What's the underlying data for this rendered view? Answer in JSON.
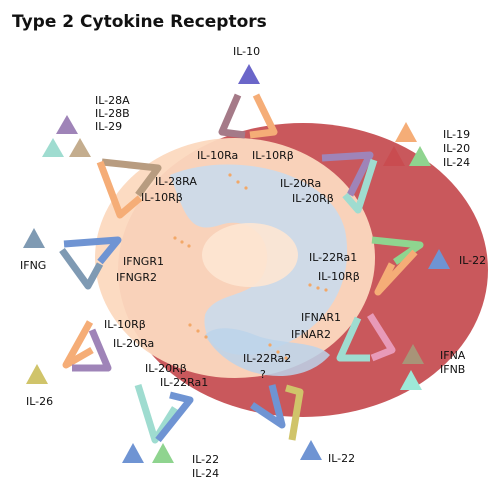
{
  "title": "Type 2 Cytokine Receptors",
  "colors": {
    "outer_ring": "#c9585c",
    "cell_body": "#fcd9bf",
    "nucleus": "#c8dcef",
    "triangle_purple": "#9f84b8",
    "triangle_blue": "#6f94d3",
    "triangle_orange": "#f5ad77",
    "triangle_teal": "#9fdcd0",
    "triangle_tan": "#b89c80",
    "triangle_red": "#c94c50",
    "triangle_green": "#8fd48f",
    "triangle_grey_blue": "#7f9ab3",
    "triangle_olive": "#d0c46a",
    "triangle_mint": "#9ee8d8"
  },
  "ligands": {
    "il10": "IL-10",
    "il28a": "IL-28A",
    "il28b": "IL-28B",
    "il29": "IL-29",
    "il19": "IL-19",
    "il20": "IL-20",
    "il24_top": "IL-24",
    "ifng": "IFNG",
    "il22_right": "IL-22",
    "ifna": "IFNA",
    "ifnb": "IFNB",
    "il26": "IL-26",
    "il22_bottom_left": "IL-22",
    "il24_bottom": "IL-24",
    "il22_bottom_right": "IL-22"
  },
  "receptors": {
    "il10ra": "IL-10Ra",
    "il10rb_top": "IL-10Rβ",
    "il28ra": "IL-28RA",
    "il10rb_28": "IL-10Rβ",
    "il20ra_top": "IL-20Ra",
    "il20rb_top": "IL-20Rβ",
    "ifngr1": "IFNGR1",
    "ifngr2": "IFNGR2",
    "il22ra1_right": "IL-22Ra1",
    "il10rb_right": "IL-10Rβ",
    "ifnar1": "IFNAR1",
    "ifnar2": "IFNAR2",
    "il10rb_left": "IL-10Rβ",
    "il20ra_left": "IL-20Ra",
    "il20rb_bottom": "IL-20Rβ",
    "il22ra1_bottom": "IL-22Ra1",
    "il22ra2": "IL-22Ra2",
    "unknown": "?"
  }
}
